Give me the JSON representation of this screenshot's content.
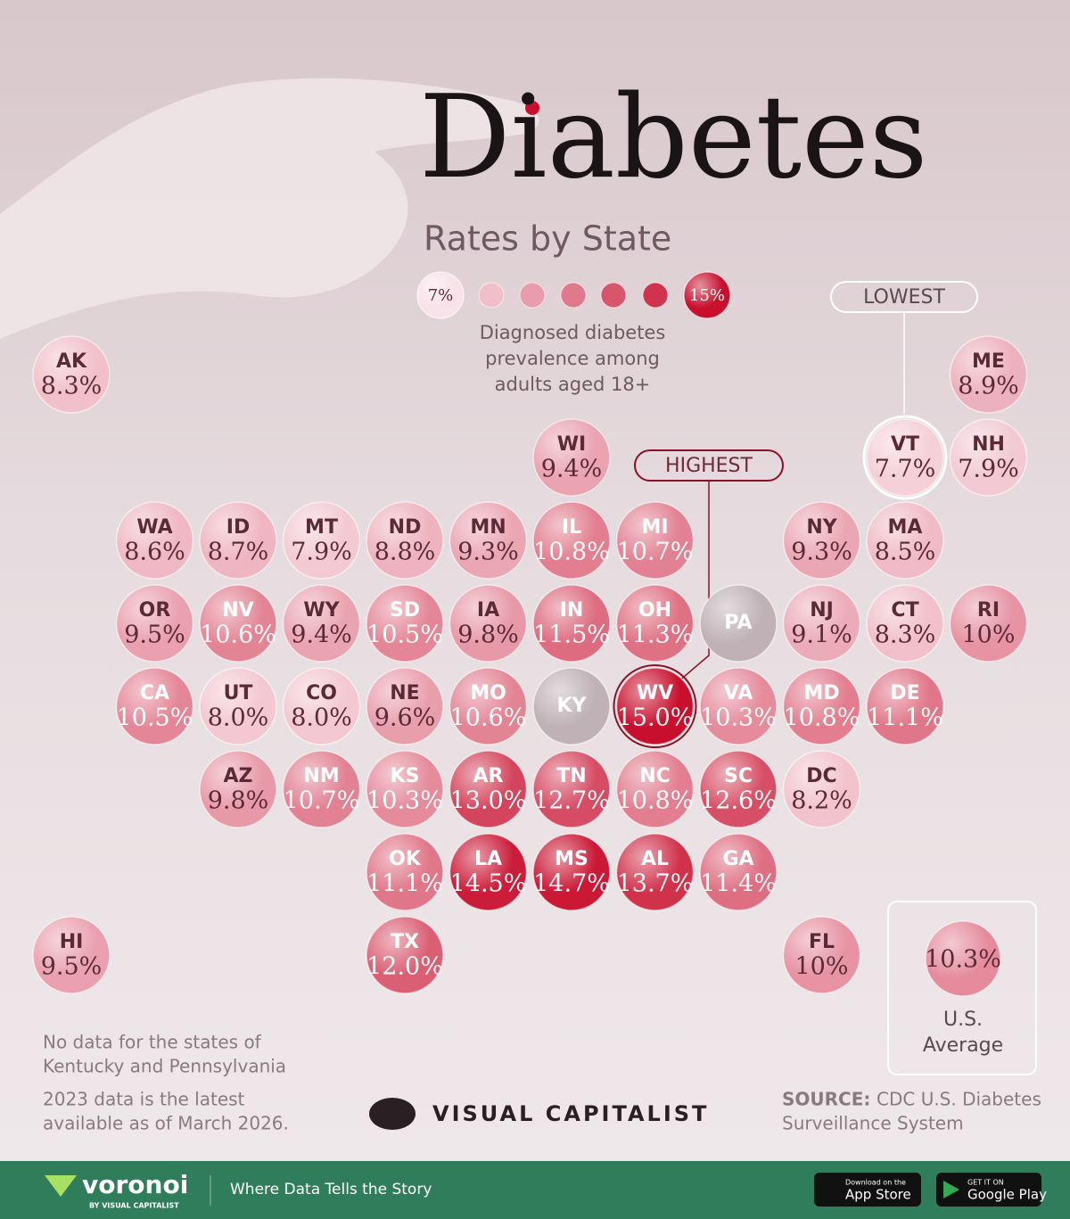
{
  "header": {
    "title": "Diabetes",
    "subtitle": "Rates by State"
  },
  "legend": {
    "min": {
      "value": 7,
      "label": "7%"
    },
    "max": {
      "value": 15,
      "label": "15%"
    },
    "description": [
      "Diagnosed diabetes",
      "prevalence among",
      "adults aged 18+"
    ]
  },
  "callouts": {
    "highest": "HIGHEST",
    "lowest": "LOWEST"
  },
  "tiles": [
    {
      "state": "AK",
      "value": 8.3,
      "label": "8.3%"
    },
    {
      "state": "ME",
      "value": 8.9,
      "label": "8.9%"
    },
    {
      "state": "WI",
      "value": 9.4,
      "label": "9.4%"
    },
    {
      "state": "VT",
      "value": 7.7,
      "label": "7.7%"
    },
    {
      "state": "NH",
      "value": 7.9,
      "label": "7.9%"
    },
    {
      "state": "WA",
      "value": 8.6,
      "label": "8.6%"
    },
    {
      "state": "ID",
      "value": 8.7,
      "label": "8.7%"
    },
    {
      "state": "MT",
      "value": 7.9,
      "label": "7.9%"
    },
    {
      "state": "ND",
      "value": 8.8,
      "label": "8.8%"
    },
    {
      "state": "MN",
      "value": 9.3,
      "label": "9.3%"
    },
    {
      "state": "IL",
      "value": 10.8,
      "label": "10.8%"
    },
    {
      "state": "MI",
      "value": 10.7,
      "label": "10.7%"
    },
    {
      "state": "NY",
      "value": 9.3,
      "label": "9.3%"
    },
    {
      "state": "MA",
      "value": 8.5,
      "label": "8.5%"
    },
    {
      "state": "OR",
      "value": 9.5,
      "label": "9.5%"
    },
    {
      "state": "NV",
      "value": 10.6,
      "label": "10.6%"
    },
    {
      "state": "WY",
      "value": 9.4,
      "label": "9.4%"
    },
    {
      "state": "SD",
      "value": 10.5,
      "label": "10.5%"
    },
    {
      "state": "IA",
      "value": 9.8,
      "label": "9.8%"
    },
    {
      "state": "IN",
      "value": 11.5,
      "label": "11.5%"
    },
    {
      "state": "OH",
      "value": 11.3,
      "label": "11.3%"
    },
    {
      "state": "PA",
      "value": null,
      "label": null
    },
    {
      "state": "NJ",
      "value": 9.1,
      "label": "9.1%"
    },
    {
      "state": "CT",
      "value": 8.3,
      "label": "8.3%"
    },
    {
      "state": "RI",
      "value": 10,
      "label": "10%"
    },
    {
      "state": "CA",
      "value": 10.5,
      "label": "10.5%"
    },
    {
      "state": "UT",
      "value": 8,
      "label": "8.0%"
    },
    {
      "state": "CO",
      "value": 8,
      "label": "8.0%"
    },
    {
      "state": "NE",
      "value": 9.6,
      "label": "9.6%"
    },
    {
      "state": "MO",
      "value": 10.6,
      "label": "10.6%"
    },
    {
      "state": "KY",
      "value": null,
      "label": null
    },
    {
      "state": "WV",
      "value": 15,
      "label": "15.0%"
    },
    {
      "state": "VA",
      "value": 10.3,
      "label": "10.3%"
    },
    {
      "state": "MD",
      "value": 10.8,
      "label": "10.8%"
    },
    {
      "state": "DE",
      "value": 11.1,
      "label": "11.1%"
    },
    {
      "state": "AZ",
      "value": 9.8,
      "label": "9.8%"
    },
    {
      "state": "NM",
      "value": 10.7,
      "label": "10.7%"
    },
    {
      "state": "KS",
      "value": 10.3,
      "label": "10.3%"
    },
    {
      "state": "AR",
      "value": 13,
      "label": "13.0%"
    },
    {
      "state": "TN",
      "value": 12.7,
      "label": "12.7%"
    },
    {
      "state": "NC",
      "value": 10.8,
      "label": "10.8%"
    },
    {
      "state": "SC",
      "value": 12.6,
      "label": "12.6%"
    },
    {
      "state": "DC",
      "value": 8.2,
      "label": "8.2%"
    },
    {
      "state": "OK",
      "value": 11.1,
      "label": "11.1%"
    },
    {
      "state": "LA",
      "value": 14.5,
      "label": "14.5%"
    },
    {
      "state": "MS",
      "value": 14.7,
      "label": "14.7%"
    },
    {
      "state": "AL",
      "value": 13.7,
      "label": "13.7%"
    },
    {
      "state": "GA",
      "value": 11.4,
      "label": "11.4%"
    },
    {
      "state": "HI",
      "value": 9.5,
      "label": "9.5%"
    },
    {
      "state": "TX",
      "value": 12,
      "label": "12.0%"
    },
    {
      "state": "FL",
      "value": 10,
      "label": "10%"
    }
  ],
  "us_average": {
    "value": 10.3,
    "label": "10.3%",
    "caption": [
      "U.S.",
      "Average"
    ]
  },
  "notes": [
    [
      "No data for the states of",
      "Kentucky and Pennsylvania"
    ],
    [
      "2023 data is the latest",
      "available as of March 2026."
    ]
  ],
  "source": {
    "label": "SOURCE:",
    "lines": [
      "CDC U.S. Diabetes",
      "Surveillance System"
    ]
  },
  "brand": "VISUAL CAPITALIST",
  "footer": {
    "logo": "voronoi",
    "byline": "BY VISUAL CAPITALIST",
    "tagline": "Where Data Tells the Story",
    "app_store": {
      "small": "Download on the",
      "big": "App Store"
    },
    "google_play": {
      "small": "GET IT ON",
      "big": "Google Play"
    }
  }
}
